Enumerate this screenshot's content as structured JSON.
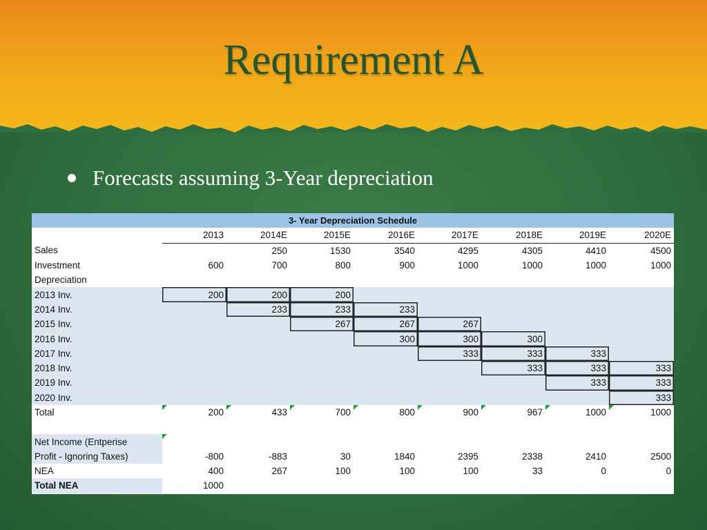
{
  "slide": {
    "title": "Requirement A",
    "bullet": "Forecasts assuming 3-Year depreciation"
  },
  "colors": {
    "header_fill": "#9dc3e6",
    "shade_fill": "#dce6f1",
    "title_color": "#24552e",
    "marker_color": "#1e9e33"
  },
  "table": {
    "title": "3- Year Depreciation Schedule",
    "years": [
      "2013",
      "2014E",
      "2015E",
      "2016E",
      "2017E",
      "2018E",
      "2019E",
      "2020E"
    ],
    "sales": {
      "label": "Sales",
      "values": [
        "",
        "250",
        "1530",
        "3540",
        "4295",
        "4305",
        "4410",
        "4500"
      ]
    },
    "investment": {
      "label": "Investment",
      "values": [
        "600",
        "700",
        "800",
        "900",
        "1000",
        "1000",
        "1000",
        "1000"
      ]
    },
    "depreciation_label": "Depreciation",
    "inv_rows": [
      {
        "label": "2013 Inv.",
        "values": [
          "200",
          "200",
          "200",
          "",
          "",
          "",
          "",
          ""
        ]
      },
      {
        "label": "2014 Inv.",
        "values": [
          "",
          "233",
          "233",
          "233",
          "",
          "",
          "",
          ""
        ]
      },
      {
        "label": "2015 Inv.",
        "values": [
          "",
          "",
          "267",
          "267",
          "267",
          "",
          "",
          ""
        ]
      },
      {
        "label": "2016 Inv.",
        "values": [
          "",
          "",
          "",
          "300",
          "300",
          "300",
          "",
          ""
        ]
      },
      {
        "label": "2017 Inv.",
        "values": [
          "",
          "",
          "",
          "",
          "333",
          "333",
          "333",
          ""
        ]
      },
      {
        "label": "2018 Inv.",
        "values": [
          "",
          "",
          "",
          "",
          "",
          "333",
          "333",
          "333"
        ]
      },
      {
        "label": "2019 Inv.",
        "values": [
          "",
          "",
          "",
          "",
          "",
          "",
          "333",
          "333"
        ]
      },
      {
        "label": "2020 Inv.",
        "values": [
          "",
          "",
          "",
          "",
          "",
          "",
          "",
          "333"
        ]
      }
    ],
    "total": {
      "label": "Total",
      "values": [
        "200",
        "433",
        "700",
        "800",
        "900",
        "967",
        "1000",
        "1000"
      ]
    },
    "net_income": {
      "label_line1": "Net Income (Entperise",
      "label_line2": "Profit - Ignoring Taxes)",
      "values": [
        "-800",
        "-883",
        "30",
        "1840",
        "2395",
        "2338",
        "2410",
        "2500"
      ]
    },
    "nea": {
      "label": "NEA",
      "values": [
        "400",
        "267",
        "100",
        "100",
        "100",
        "33",
        "0",
        "0"
      ]
    },
    "total_nea": {
      "label": "Total NEA",
      "values": [
        "1000",
        "",
        "",
        "",
        "",
        "",
        "",
        ""
      ]
    }
  }
}
